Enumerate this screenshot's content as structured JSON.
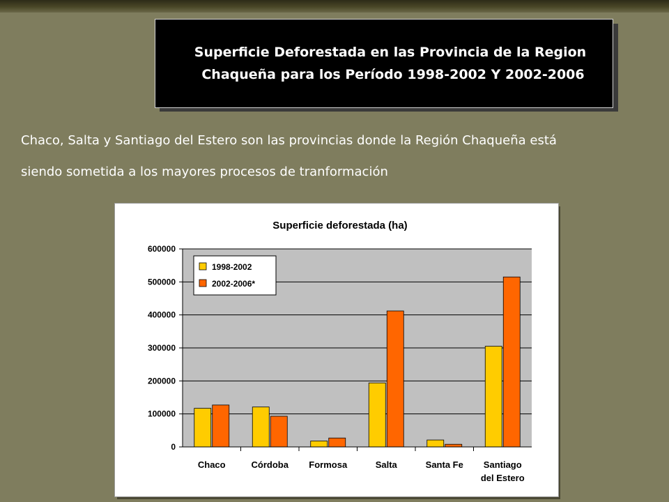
{
  "slide": {
    "title_line1": "Superficie Deforestada  en las Provincia  de la Region",
    "title_line2": "Chaqueña para los Período 1998-2002 Y 2002-2006",
    "body_line1": "Chaco, Salta y Santiago del Estero son las provincias donde la Región Chaqueña está",
    "body_line2": "siendo sometida a los mayores procesos de tranformación"
  },
  "chart_data": {
    "type": "bar",
    "title": "Superficie deforestada (ha)",
    "categories": [
      "Chaco",
      "Córdoba",
      "Formosa",
      "Salta",
      "Santa Fe",
      "Santiago del Estero"
    ],
    "category_lines": [
      [
        "Chaco"
      ],
      [
        "Córdoba"
      ],
      [
        "Formosa"
      ],
      [
        "Salta"
      ],
      [
        "Santa Fe"
      ],
      [
        "Santiago",
        "del Estero"
      ]
    ],
    "series": [
      {
        "name": "1998-2002",
        "color": "#ffcc00",
        "values": [
          117000,
          121000,
          18000,
          194000,
          21000,
          305000
        ]
      },
      {
        "name": "2002-2006*",
        "color": "#ff6600",
        "values": [
          127000,
          93000,
          27000,
          412000,
          8000,
          515000
        ]
      }
    ],
    "ylim": [
      0,
      600000
    ],
    "yticks": [
      0,
      100000,
      200000,
      300000,
      400000,
      500000,
      600000
    ],
    "ytick_labels": [
      "0",
      "100000",
      "200000",
      "300000",
      "400000",
      "500000",
      "600000"
    ],
    "grid": true,
    "legend": "top-left",
    "plot_background": "#c0c0c0"
  }
}
